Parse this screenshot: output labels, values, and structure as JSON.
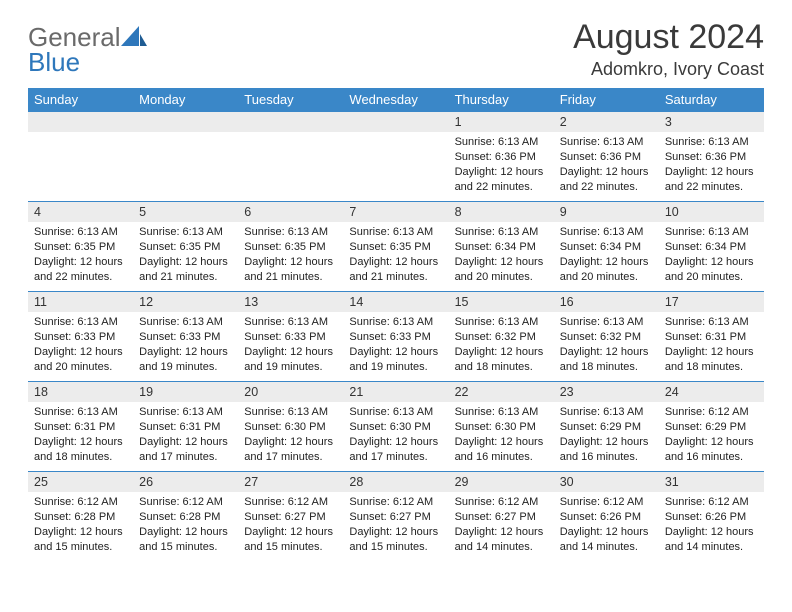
{
  "brand": {
    "word1": "General",
    "word2": "Blue"
  },
  "title": {
    "month": "August 2024",
    "location": "Adomkro, Ivory Coast"
  },
  "colors": {
    "header_bg": "#3a87c8",
    "header_text": "#ffffff",
    "rule": "#3a87c8",
    "daynum_bg": "#ececec",
    "body_text": "#222222",
    "page_bg": "#ffffff",
    "logo_gray": "#6a6a6a",
    "logo_blue": "#2e77bb"
  },
  "typography": {
    "title_fontsize": 34,
    "location_fontsize": 18,
    "dow_fontsize": 13,
    "daynum_fontsize": 12.5,
    "body_fontsize": 11
  },
  "days_of_week": [
    "Sunday",
    "Monday",
    "Tuesday",
    "Wednesday",
    "Thursday",
    "Friday",
    "Saturday"
  ],
  "weeks": [
    [
      {
        "blank": true
      },
      {
        "blank": true
      },
      {
        "blank": true
      },
      {
        "blank": true
      },
      {
        "n": "1",
        "sunrise": "6:13 AM",
        "sunset": "6:36 PM",
        "dl1": "Daylight: 12 hours",
        "dl2": "and 22 minutes."
      },
      {
        "n": "2",
        "sunrise": "6:13 AM",
        "sunset": "6:36 PM",
        "dl1": "Daylight: 12 hours",
        "dl2": "and 22 minutes."
      },
      {
        "n": "3",
        "sunrise": "6:13 AM",
        "sunset": "6:36 PM",
        "dl1": "Daylight: 12 hours",
        "dl2": "and 22 minutes."
      }
    ],
    [
      {
        "n": "4",
        "sunrise": "6:13 AM",
        "sunset": "6:35 PM",
        "dl1": "Daylight: 12 hours",
        "dl2": "and 22 minutes."
      },
      {
        "n": "5",
        "sunrise": "6:13 AM",
        "sunset": "6:35 PM",
        "dl1": "Daylight: 12 hours",
        "dl2": "and 21 minutes."
      },
      {
        "n": "6",
        "sunrise": "6:13 AM",
        "sunset": "6:35 PM",
        "dl1": "Daylight: 12 hours",
        "dl2": "and 21 minutes."
      },
      {
        "n": "7",
        "sunrise": "6:13 AM",
        "sunset": "6:35 PM",
        "dl1": "Daylight: 12 hours",
        "dl2": "and 21 minutes."
      },
      {
        "n": "8",
        "sunrise": "6:13 AM",
        "sunset": "6:34 PM",
        "dl1": "Daylight: 12 hours",
        "dl2": "and 20 minutes."
      },
      {
        "n": "9",
        "sunrise": "6:13 AM",
        "sunset": "6:34 PM",
        "dl1": "Daylight: 12 hours",
        "dl2": "and 20 minutes."
      },
      {
        "n": "10",
        "sunrise": "6:13 AM",
        "sunset": "6:34 PM",
        "dl1": "Daylight: 12 hours",
        "dl2": "and 20 minutes."
      }
    ],
    [
      {
        "n": "11",
        "sunrise": "6:13 AM",
        "sunset": "6:33 PM",
        "dl1": "Daylight: 12 hours",
        "dl2": "and 20 minutes."
      },
      {
        "n": "12",
        "sunrise": "6:13 AM",
        "sunset": "6:33 PM",
        "dl1": "Daylight: 12 hours",
        "dl2": "and 19 minutes."
      },
      {
        "n": "13",
        "sunrise": "6:13 AM",
        "sunset": "6:33 PM",
        "dl1": "Daylight: 12 hours",
        "dl2": "and 19 minutes."
      },
      {
        "n": "14",
        "sunrise": "6:13 AM",
        "sunset": "6:33 PM",
        "dl1": "Daylight: 12 hours",
        "dl2": "and 19 minutes."
      },
      {
        "n": "15",
        "sunrise": "6:13 AM",
        "sunset": "6:32 PM",
        "dl1": "Daylight: 12 hours",
        "dl2": "and 18 minutes."
      },
      {
        "n": "16",
        "sunrise": "6:13 AM",
        "sunset": "6:32 PM",
        "dl1": "Daylight: 12 hours",
        "dl2": "and 18 minutes."
      },
      {
        "n": "17",
        "sunrise": "6:13 AM",
        "sunset": "6:31 PM",
        "dl1": "Daylight: 12 hours",
        "dl2": "and 18 minutes."
      }
    ],
    [
      {
        "n": "18",
        "sunrise": "6:13 AM",
        "sunset": "6:31 PM",
        "dl1": "Daylight: 12 hours",
        "dl2": "and 18 minutes."
      },
      {
        "n": "19",
        "sunrise": "6:13 AM",
        "sunset": "6:31 PM",
        "dl1": "Daylight: 12 hours",
        "dl2": "and 17 minutes."
      },
      {
        "n": "20",
        "sunrise": "6:13 AM",
        "sunset": "6:30 PM",
        "dl1": "Daylight: 12 hours",
        "dl2": "and 17 minutes."
      },
      {
        "n": "21",
        "sunrise": "6:13 AM",
        "sunset": "6:30 PM",
        "dl1": "Daylight: 12 hours",
        "dl2": "and 17 minutes."
      },
      {
        "n": "22",
        "sunrise": "6:13 AM",
        "sunset": "6:30 PM",
        "dl1": "Daylight: 12 hours",
        "dl2": "and 16 minutes."
      },
      {
        "n": "23",
        "sunrise": "6:13 AM",
        "sunset": "6:29 PM",
        "dl1": "Daylight: 12 hours",
        "dl2": "and 16 minutes."
      },
      {
        "n": "24",
        "sunrise": "6:12 AM",
        "sunset": "6:29 PM",
        "dl1": "Daylight: 12 hours",
        "dl2": "and 16 minutes."
      }
    ],
    [
      {
        "n": "25",
        "sunrise": "6:12 AM",
        "sunset": "6:28 PM",
        "dl1": "Daylight: 12 hours",
        "dl2": "and 15 minutes."
      },
      {
        "n": "26",
        "sunrise": "6:12 AM",
        "sunset": "6:28 PM",
        "dl1": "Daylight: 12 hours",
        "dl2": "and 15 minutes."
      },
      {
        "n": "27",
        "sunrise": "6:12 AM",
        "sunset": "6:27 PM",
        "dl1": "Daylight: 12 hours",
        "dl2": "and 15 minutes."
      },
      {
        "n": "28",
        "sunrise": "6:12 AM",
        "sunset": "6:27 PM",
        "dl1": "Daylight: 12 hours",
        "dl2": "and 15 minutes."
      },
      {
        "n": "29",
        "sunrise": "6:12 AM",
        "sunset": "6:27 PM",
        "dl1": "Daylight: 12 hours",
        "dl2": "and 14 minutes."
      },
      {
        "n": "30",
        "sunrise": "6:12 AM",
        "sunset": "6:26 PM",
        "dl1": "Daylight: 12 hours",
        "dl2": "and 14 minutes."
      },
      {
        "n": "31",
        "sunrise": "6:12 AM",
        "sunset": "6:26 PM",
        "dl1": "Daylight: 12 hours",
        "dl2": "and 14 minutes."
      }
    ]
  ],
  "labels": {
    "sunrise_prefix": "Sunrise: ",
    "sunset_prefix": "Sunset: "
  }
}
